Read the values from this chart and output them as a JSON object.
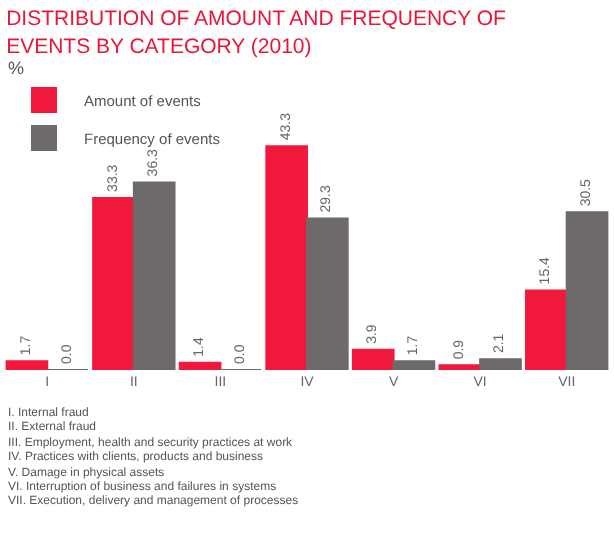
{
  "chart_data": {
    "type": "bar",
    "title": "DISTRIBUTION OF AMOUNT AND FREQUENCY OF EVENTS BY CATEGORY (2010)",
    "ylabel": "%",
    "categories": [
      "I",
      "II",
      "III",
      "IV",
      "V",
      "VI",
      "VII"
    ],
    "series": [
      {
        "name": "Amount of events",
        "color": "#f0193c",
        "values": [
          1.7,
          33.3,
          1.4,
          43.3,
          3.9,
          0.9,
          15.4
        ],
        "value_labels": [
          "1.7",
          "33.3",
          "1.4",
          "43.3",
          "3.9",
          "0.9",
          "15.4"
        ]
      },
      {
        "name": "Frequency of events",
        "color": "#6e6a6a",
        "values": [
          0.0,
          36.3,
          0.0,
          29.3,
          1.7,
          2.1,
          30.5
        ],
        "value_labels": [
          "0.0",
          "36.3",
          "0.0",
          "29.3",
          "1.7",
          "2.1",
          "30.5"
        ]
      }
    ],
    "legend": "top left",
    "grid": false,
    "annotations": [
      "I. Internal fraud",
      "II. External fraud",
      "III. Employment, health and security practices at work",
      "IV. Practices with clients, products and business",
      "V. Damage in physical assets",
      "VI. Interruption of business and failures in systems",
      "VII. Execution, delivery and management of processes"
    ]
  }
}
